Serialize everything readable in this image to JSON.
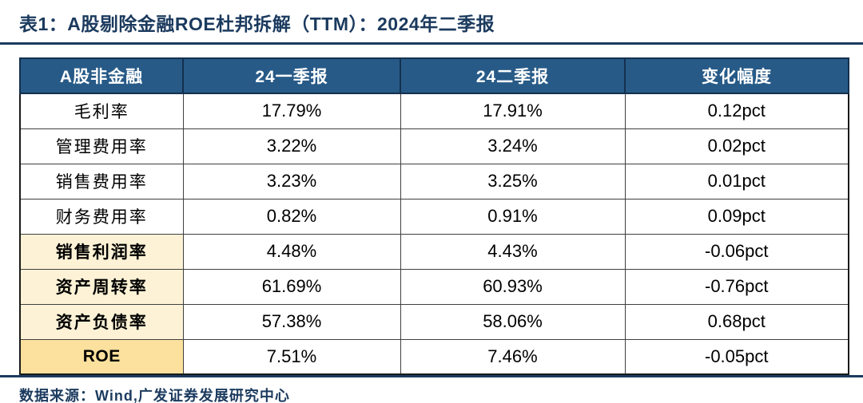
{
  "title": "表1：A股剔除金融ROE杜邦拆解（TTM）：2024年二季报",
  "table": {
    "headers": [
      "A股非金融",
      "24一季报",
      "24二季报",
      "变化幅度"
    ],
    "rows": [
      {
        "label": "毛利率",
        "q1": "17.79%",
        "q2": "17.91%",
        "change": "0.12pct",
        "highlight": "none"
      },
      {
        "label": "管理费用率",
        "q1": "3.22%",
        "q2": "3.24%",
        "change": "0.02pct",
        "highlight": "none"
      },
      {
        "label": "销售费用率",
        "q1": "3.23%",
        "q2": "3.25%",
        "change": "0.01pct",
        "highlight": "none"
      },
      {
        "label": "财务费用率",
        "q1": "0.82%",
        "q2": "0.91%",
        "change": "0.09pct",
        "highlight": "none"
      },
      {
        "label": "销售利润率",
        "q1": "4.48%",
        "q2": "4.43%",
        "change": "-0.06pct",
        "highlight": "cream"
      },
      {
        "label": "资产周转率",
        "q1": "61.69%",
        "q2": "60.93%",
        "change": "-0.76pct",
        "highlight": "cream"
      },
      {
        "label": "资产负债率",
        "q1": "57.38%",
        "q2": "58.06%",
        "change": "0.68pct",
        "highlight": "cream"
      },
      {
        "label": "ROE",
        "q1": "7.51%",
        "q2": "7.46%",
        "change": "-0.05pct",
        "highlight": "gold"
      }
    ]
  },
  "footer": {
    "source_label": "数据来源：Wind,广发证券发展研究中心"
  },
  "colors": {
    "title_navy": "#1b3a5e",
    "header_bg": "#275a87",
    "header_text": "#ffffff",
    "highlight_cream": "#fdf2d5",
    "highlight_gold": "#fbe19d"
  }
}
